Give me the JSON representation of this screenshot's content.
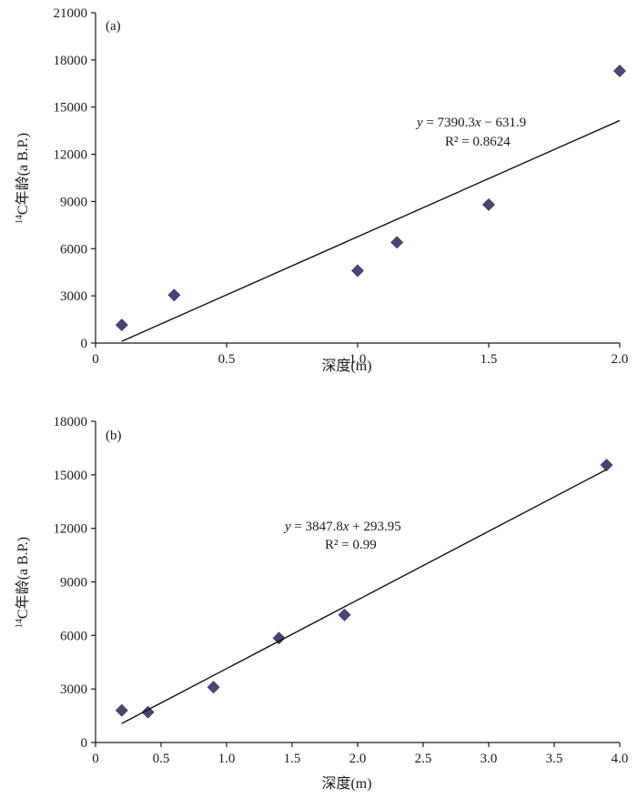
{
  "chart_data": [
    {
      "type": "scatter",
      "panel_label": "(a)",
      "xlabel": "深度(m)",
      "ylabel_sup": "14",
      "ylabel": "C年龄(a B.P.)",
      "xlim": [
        0,
        2.0
      ],
      "ylim": [
        0,
        21000
      ],
      "xticks": [
        "0",
        "0.5",
        "1.0",
        "1.5",
        "2.0"
      ],
      "xtick_values": [
        0,
        0.5,
        1.0,
        1.5,
        2.0
      ],
      "yticks": [
        "0",
        "3000",
        "6000",
        "9000",
        "12000",
        "15000",
        "18000",
        "21000"
      ],
      "ytick_values": [
        0,
        3000,
        6000,
        9000,
        12000,
        15000,
        18000,
        21000
      ],
      "points": [
        {
          "x": 0.1,
          "y": 1150
        },
        {
          "x": 0.3,
          "y": 3050
        },
        {
          "x": 1.0,
          "y": 4600
        },
        {
          "x": 1.15,
          "y": 6400
        },
        {
          "x": 1.5,
          "y": 8800
        },
        {
          "x": 2.0,
          "y": 17300
        }
      ],
      "fit": {
        "slope": 7390.3,
        "intercept": -631.9,
        "x_range": [
          0.1,
          2.0
        ]
      },
      "equation": {
        "y_var": "y",
        "eq_mid": " = 7390.3",
        "x_var": "x",
        "eq_tail": " − 631.9",
        "r2": "R² = 0.8624"
      }
    },
    {
      "type": "scatter",
      "panel_label": "(b)",
      "xlabel": "深度(m)",
      "ylabel_sup": "14",
      "ylabel": "C年龄(a B.P.)",
      "xlim": [
        0,
        4.0
      ],
      "ylim": [
        0,
        18000
      ],
      "xticks": [
        "0",
        "0.5",
        "1.0",
        "1.5",
        "2.0",
        "2.5",
        "3.0",
        "3.5",
        "4.0"
      ],
      "xtick_values": [
        0,
        0.5,
        1.0,
        1.5,
        2.0,
        2.5,
        3.0,
        3.5,
        4.0
      ],
      "yticks": [
        "0",
        "3000",
        "6000",
        "9000",
        "12000",
        "15000",
        "18000"
      ],
      "ytick_values": [
        0,
        3000,
        6000,
        9000,
        12000,
        15000,
        18000
      ],
      "points": [
        {
          "x": 0.2,
          "y": 1800
        },
        {
          "x": 0.4,
          "y": 1700
        },
        {
          "x": 0.9,
          "y": 3100
        },
        {
          "x": 1.4,
          "y": 5850
        },
        {
          "x": 1.9,
          "y": 7150
        },
        {
          "x": 3.9,
          "y": 15550
        }
      ],
      "fit": {
        "slope": 3847.8,
        "intercept": 293.95,
        "x_range": [
          0.2,
          3.9
        ]
      },
      "equation": {
        "y_var": "y",
        "eq_mid": " = 3847.8",
        "x_var": "x",
        "eq_tail": " + 293.95",
        "r2": "R² = 0.99"
      }
    }
  ]
}
